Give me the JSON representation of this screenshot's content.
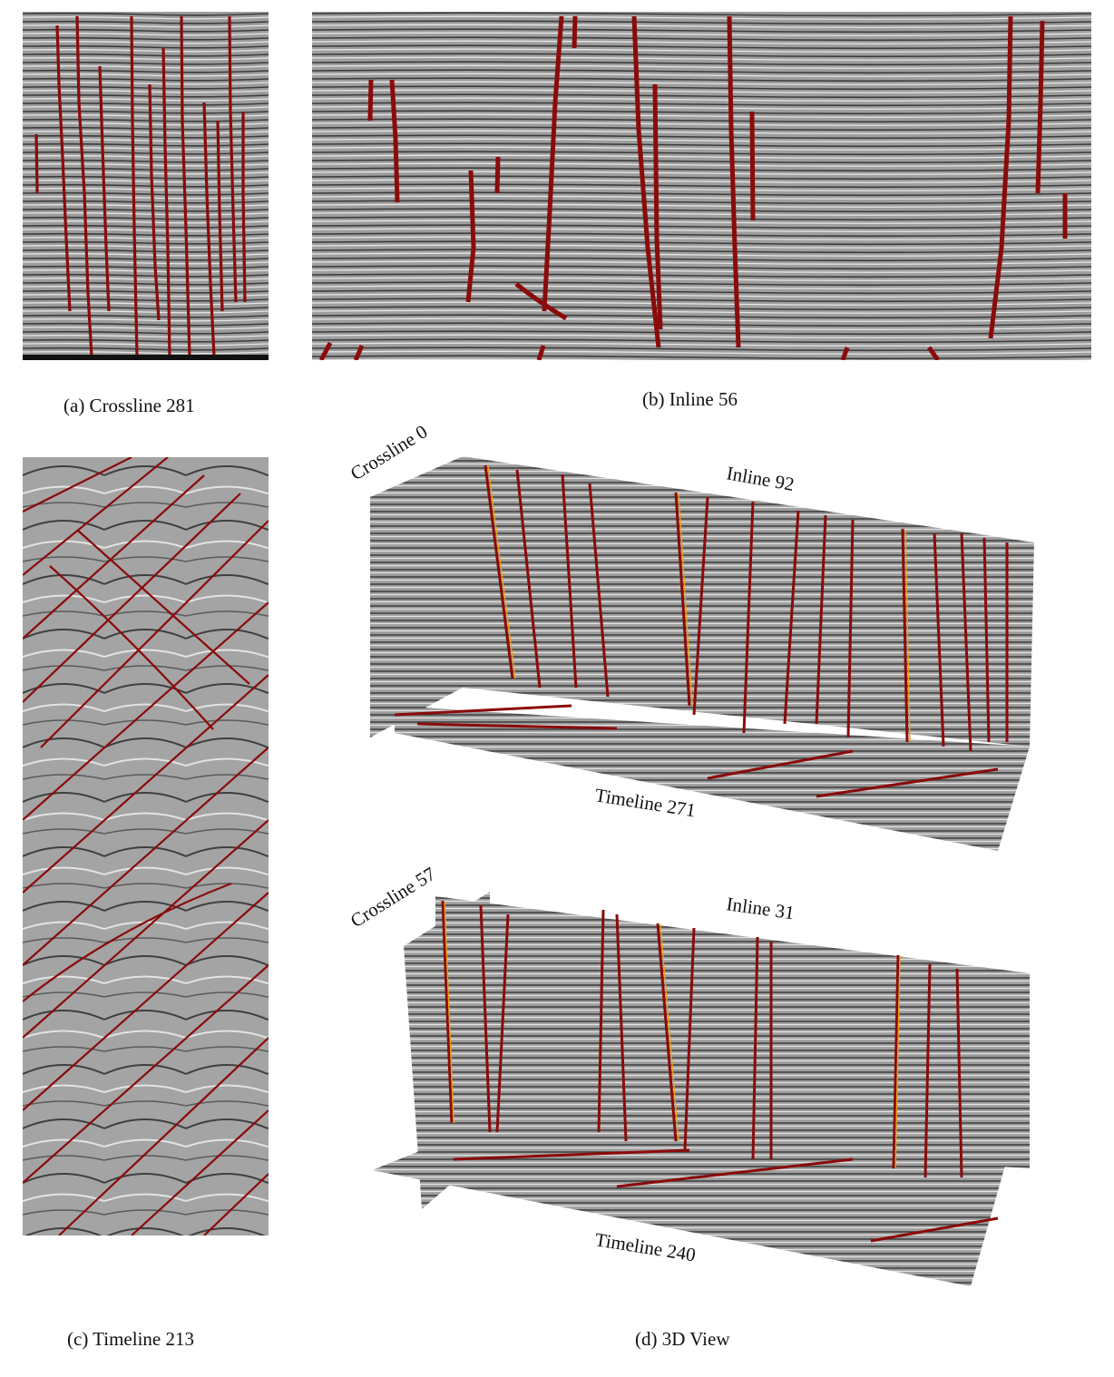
{
  "figure": {
    "panels": [
      {
        "id": "a",
        "caption": "(a) Crossline 281"
      },
      {
        "id": "b",
        "caption": "(b) Inline 56"
      },
      {
        "id": "c",
        "caption": "(c) Timeline 213"
      },
      {
        "id": "d",
        "caption": "(d) 3D View"
      }
    ],
    "view3d_top": {
      "crossline_label": "Crossline 0",
      "inline_label": "Inline 92",
      "timeline_label": "Timeline 271"
    },
    "view3d_bottom": {
      "crossline_label": "Crossline 57",
      "inline_label": "Inline 31",
      "timeline_label": "Timeline 240"
    },
    "colors": {
      "fault": "#8b0a0a",
      "fault_high": "#e8a21a",
      "fault_low": "#b5d335",
      "seismic_bg": "#9a9a9a"
    }
  }
}
